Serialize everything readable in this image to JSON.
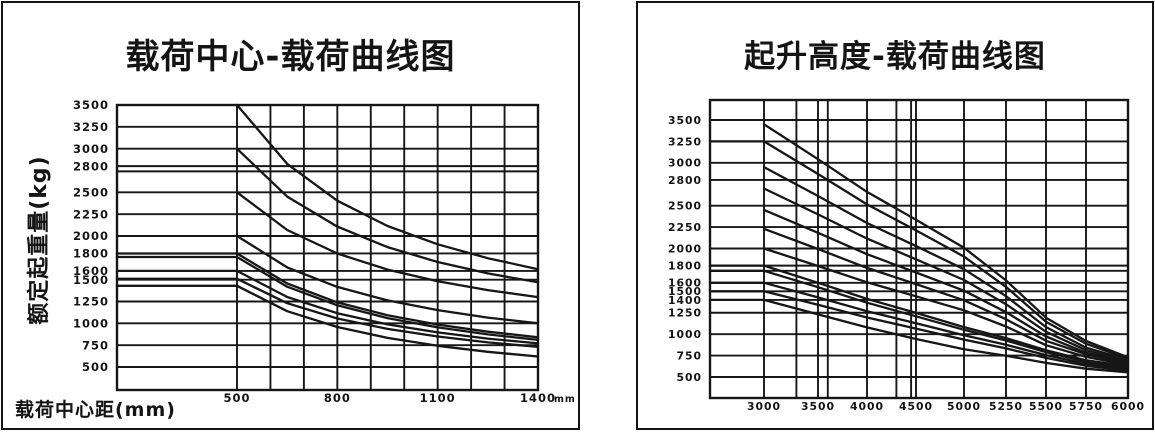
{
  "colors": {
    "line": "#161616",
    "background": "#ffffff"
  },
  "chart_data": [
    {
      "type": "line",
      "title": "载荷中心-载荷曲线图",
      "y_axis": {
        "label": "额定起重量(kg)",
        "ticks": [
          3500,
          3250,
          3000,
          2800,
          2500,
          2250,
          2000,
          1800,
          1600,
          1500,
          1250,
          1000,
          750,
          500
        ],
        "extra_gridlines": [
          2740
        ],
        "range": [
          500,
          3500
        ]
      },
      "x_axis": {
        "label": "载荷中心距(mm)",
        "unit": "mm",
        "range": [
          500,
          1400
        ],
        "gridline_values": [
          500,
          600,
          700,
          800,
          900,
          1000,
          1100,
          1200,
          1300,
          1400
        ],
        "ticks": [
          {
            "value": 500,
            "label": "500"
          },
          {
            "value": 800,
            "label": "800"
          },
          {
            "value": 1100,
            "label": "1100"
          },
          {
            "value": 1400,
            "label": "1400"
          }
        ]
      },
      "curves": [
        {
          "name": "curve-3500",
          "flat_from_axis": false,
          "points": [
            [
              500,
              3500
            ],
            [
              650,
              2826
            ],
            [
              800,
              2404
            ],
            [
              950,
              2115
            ],
            [
              1100,
              1905
            ],
            [
              1250,
              1746
            ],
            [
              1400,
              1620
            ]
          ]
        },
        {
          "name": "curve-3000",
          "flat_from_axis": false,
          "points": [
            [
              500,
              3000
            ],
            [
              650,
              2451
            ],
            [
              800,
              2108
            ],
            [
              950,
              1873
            ],
            [
              1100,
              1702
            ],
            [
              1250,
              1572
            ],
            [
              1400,
              1470
            ]
          ]
        },
        {
          "name": "curve-2500",
          "flat_from_axis": false,
          "points": [
            [
              500,
              2500
            ],
            [
              650,
              2069
            ],
            [
              800,
              1800
            ],
            [
              950,
              1615
            ],
            [
              1100,
              1482
            ],
            [
              1250,
              1380
            ],
            [
              1400,
              1300
            ]
          ]
        },
        {
          "name": "curve-2000",
          "flat_from_axis": false,
          "points": [
            [
              500,
              2000
            ],
            [
              650,
              1641
            ],
            [
              800,
              1417
            ],
            [
              950,
              1263
            ],
            [
              1100,
              1151
            ],
            [
              1250,
              1066
            ],
            [
              1400,
              1000
            ]
          ]
        },
        {
          "name": "curve-1800",
          "flat_from_axis": true,
          "points": [
            [
              500,
              1800
            ],
            [
              650,
              1456
            ],
            [
              800,
              1240
            ],
            [
              950,
              1093
            ],
            [
              1100,
              986
            ],
            [
              1250,
              904
            ],
            [
              1400,
              840
            ]
          ]
        },
        {
          "name": "curve-1760",
          "flat_from_axis": true,
          "points": [
            [
              500,
              1760
            ],
            [
              650,
              1419
            ],
            [
              800,
              1206
            ],
            [
              950,
              1060
            ],
            [
              1100,
              954
            ],
            [
              1250,
              873
            ],
            [
              1400,
              810
            ]
          ]
        },
        {
          "name": "curve-1600",
          "flat_from_axis": true,
          "points": [
            [
              500,
              1600
            ],
            [
              650,
              1302
            ],
            [
              800,
              1116
            ],
            [
              950,
              988
            ],
            [
              1100,
              896
            ],
            [
              1250,
              825
            ],
            [
              1400,
              770
            ]
          ]
        },
        {
          "name": "curve-1510",
          "flat_from_axis": true,
          "points": [
            [
              500,
              1510
            ],
            [
              650,
              1230
            ],
            [
              800,
              1055
            ],
            [
              950,
              936
            ],
            [
              1100,
              849
            ],
            [
              1250,
              782
            ],
            [
              1400,
              730
            ]
          ]
        },
        {
          "name": "curve-1430",
          "flat_from_axis": true,
          "points": [
            [
              500,
              1430
            ],
            [
              650,
              1139
            ],
            [
              800,
              958
            ],
            [
              950,
              833
            ],
            [
              1100,
              743
            ],
            [
              1250,
              674
            ],
            [
              1400,
              620
            ]
          ]
        }
      ]
    },
    {
      "type": "line",
      "title": "起升高度-载荷曲线图",
      "y_axis": {
        "label": "",
        "ticks": [
          3500,
          3250,
          3000,
          2800,
          2500,
          2250,
          2000,
          1800,
          1600,
          1500,
          1400,
          1250,
          1000,
          750,
          500
        ],
        "extra_gridlines": [
          1740
        ],
        "range": [
          500,
          3500
        ]
      },
      "x_axis": {
        "label": "",
        "unit": "",
        "range": [
          3000,
          6000
        ],
        "gridline_values": [
          3000,
          3300,
          3500,
          3600,
          4000,
          4300,
          4450,
          4500,
          5000,
          5250,
          5500,
          5750,
          6000
        ],
        "ticks": [
          {
            "value": 3000,
            "label": "3000"
          },
          {
            "value": 3500,
            "label": "3500"
          },
          {
            "value": 4000,
            "label": "4000"
          },
          {
            "value": 4500,
            "label": "4500"
          },
          {
            "value": 5000,
            "label": "5000"
          },
          {
            "value": 5250,
            "label": "5250"
          },
          {
            "value": 5500,
            "label": "5500"
          },
          {
            "value": 5750,
            "label": "5750"
          },
          {
            "value": 6000,
            "label": "6000"
          }
        ]
      },
      "curves": [
        {
          "name": "curve-3450",
          "flat_from_axis": false,
          "points": [
            [
              3000,
              3450
            ],
            [
              3500,
              3042
            ],
            [
              4000,
              2661
            ],
            [
              4500,
              2335
            ],
            [
              5000,
              2008
            ],
            [
              5250,
              1628
            ],
            [
              5500,
              1192
            ],
            [
              5750,
              920
            ],
            [
              6000,
              730
            ]
          ]
        },
        {
          "name": "curve-3250",
          "flat_from_axis": true,
          "points": [
            [
              3000,
              3250
            ],
            [
              3500,
              2870
            ],
            [
              4000,
              2515
            ],
            [
              4500,
              2211
            ],
            [
              5000,
              1906
            ],
            [
              5250,
              1552
            ],
            [
              5500,
              1146
            ],
            [
              5750,
              888
            ],
            [
              6000,
              715
            ]
          ]
        },
        {
          "name": "curve-2950",
          "flat_from_axis": false,
          "points": [
            [
              3000,
              2950
            ],
            [
              3500,
              2613
            ],
            [
              4000,
              2298
            ],
            [
              4500,
              2028
            ],
            [
              5000,
              1758
            ],
            [
              5250,
              1443
            ],
            [
              5500,
              1083
            ],
            [
              5750,
              843
            ],
            [
              6000,
              700
            ]
          ]
        },
        {
          "name": "curve-2700",
          "flat_from_axis": false,
          "points": [
            [
              3000,
              2700
            ],
            [
              3500,
              2398
            ],
            [
              4000,
              2116
            ],
            [
              4500,
              1874
            ],
            [
              5000,
              1632
            ],
            [
              5250,
              1350
            ],
            [
              5500,
              1028
            ],
            [
              5750,
              813
            ],
            [
              6000,
              685
            ]
          ]
        },
        {
          "name": "curve-2450",
          "flat_from_axis": false,
          "points": [
            [
              3000,
              2450
            ],
            [
              3500,
              2183
            ],
            [
              4000,
              1934
            ],
            [
              4500,
              1720
            ],
            [
              5000,
              1507
            ],
            [
              5250,
              1257
            ],
            [
              5500,
              973
            ],
            [
              5750,
              784
            ],
            [
              6000,
              670
            ]
          ]
        },
        {
          "name": "curve-2230",
          "flat_from_axis": false,
          "points": [
            [
              3000,
              2230
            ],
            [
              3500,
              1994
            ],
            [
              4000,
              1773
            ],
            [
              4500,
              1584
            ],
            [
              5000,
              1395
            ],
            [
              5250,
              1175
            ],
            [
              5500,
              923
            ],
            [
              5750,
              765
            ],
            [
              6000,
              655
            ]
          ]
        },
        {
          "name": "curve-2000",
          "flat_from_axis": false,
          "points": [
            [
              3000,
              2000
            ],
            [
              3500,
              1796
            ],
            [
              4000,
              1606
            ],
            [
              4500,
              1442
            ],
            [
              5000,
              1279
            ],
            [
              5250,
              1089
            ],
            [
              5500,
              871
            ],
            [
              5750,
              735
            ],
            [
              6000,
              640
            ]
          ]
        },
        {
          "name": "curve-1800",
          "flat_from_axis": true,
          "points": [
            [
              3000,
              1800
            ],
            [
              3500,
              1600
            ],
            [
              4000,
              1412
            ],
            [
              4500,
              1248
            ],
            [
              5000,
              1083
            ],
            [
              5250,
              954
            ],
            [
              5500,
              813
            ],
            [
              5750,
              695
            ],
            [
              6000,
              625
            ]
          ]
        },
        {
          "name": "curve-1740",
          "flat_from_axis": true,
          "points": [
            [
              3000,
              1740
            ],
            [
              3500,
              1548
            ],
            [
              4000,
              1367
            ],
            [
              4500,
              1209
            ],
            [
              5000,
              1051
            ],
            [
              5250,
              926
            ],
            [
              5500,
              791
            ],
            [
              5750,
              678
            ],
            [
              6000,
              610
            ]
          ]
        },
        {
          "name": "curve-1600",
          "flat_from_axis": true,
          "points": [
            [
              3000,
              1600
            ],
            [
              3500,
              1429
            ],
            [
              4000,
              1268
            ],
            [
              4500,
              1128
            ],
            [
              5000,
              987
            ],
            [
              5250,
              876
            ],
            [
              5500,
              756
            ],
            [
              5750,
              655
            ],
            [
              6000,
              595
            ]
          ]
        },
        {
          "name": "curve-1500",
          "flat_from_axis": true,
          "points": [
            [
              3000,
              1500
            ],
            [
              3500,
              1343
            ],
            [
              4000,
              1195
            ],
            [
              4500,
              1065
            ],
            [
              5000,
              936
            ],
            [
              5250,
              834
            ],
            [
              5500,
              723
            ],
            [
              5750,
              631
            ],
            [
              6000,
              575
            ]
          ]
        },
        {
          "name": "curve-1400",
          "flat_from_axis": true,
          "points": [
            [
              3000,
              1400
            ],
            [
              3500,
              1231
            ],
            [
              4000,
              1079
            ],
            [
              4500,
              944
            ],
            [
              5000,
              825
            ],
            [
              5250,
              749
            ],
            [
              5500,
              665
            ],
            [
              5750,
              597
            ],
            [
              6000,
              555
            ]
          ]
        }
      ]
    }
  ]
}
